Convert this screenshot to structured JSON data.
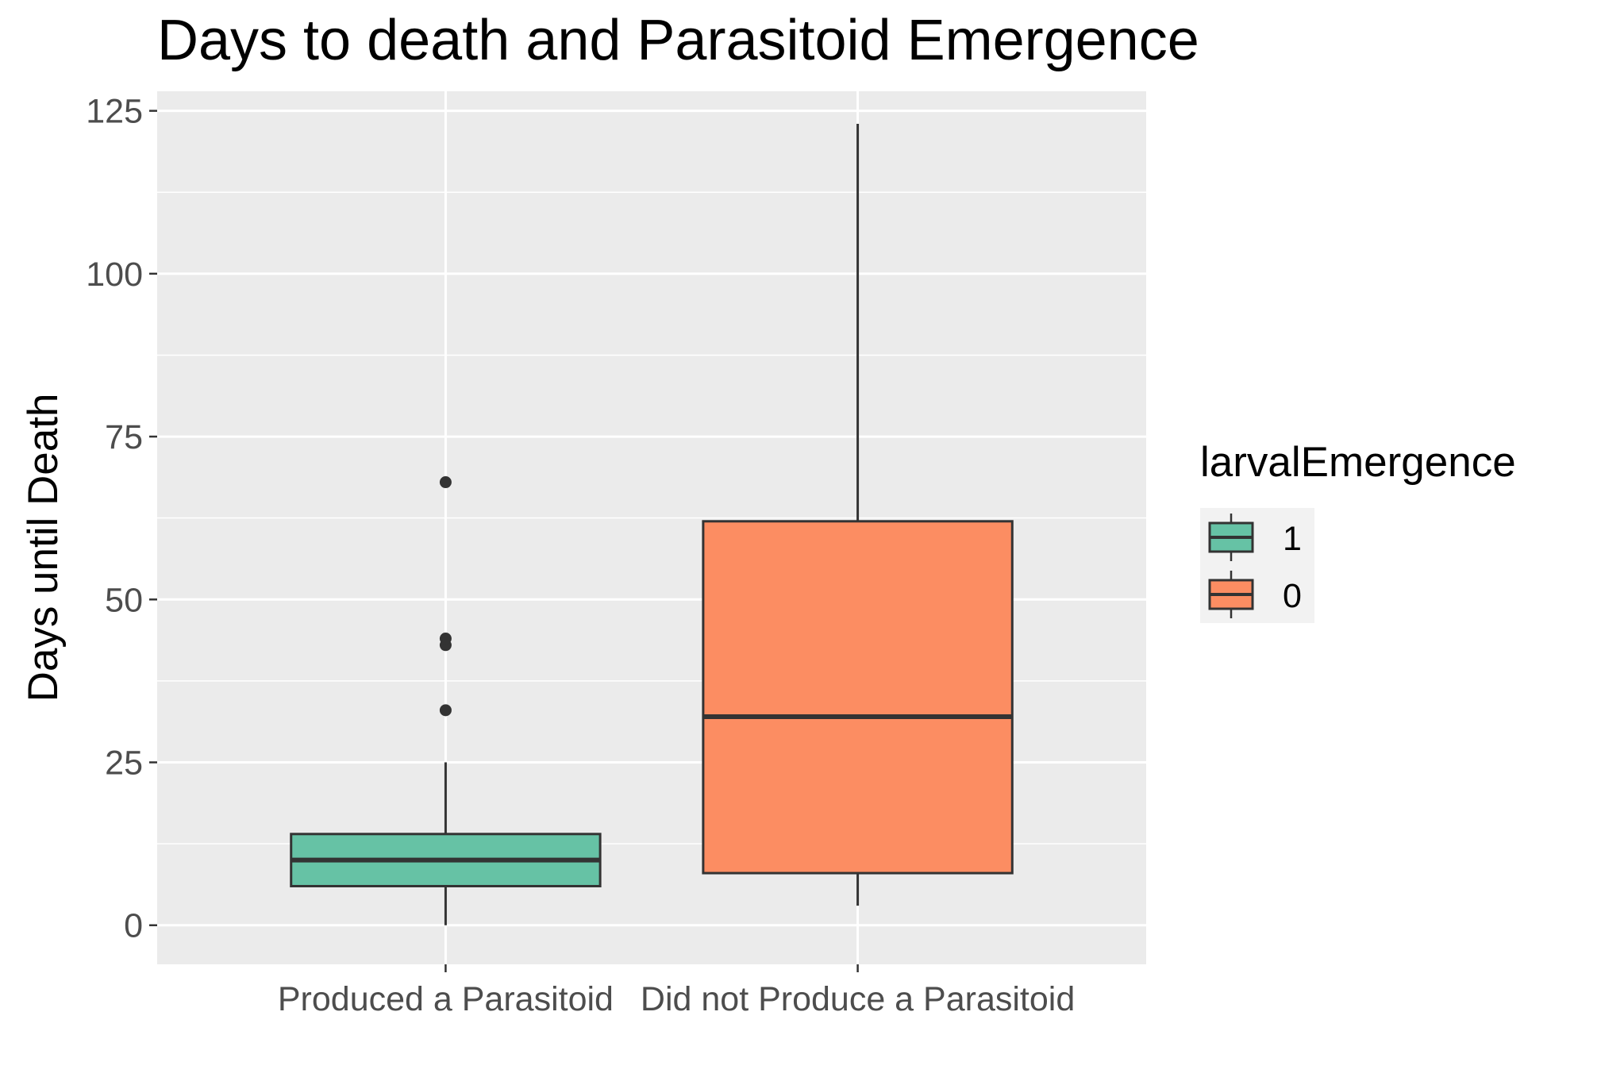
{
  "chart_data": {
    "type": "box",
    "title": "Days to death and Parasitoid Emergence",
    "xlabel": "",
    "ylabel": "Days until Death",
    "ylim": [
      -6,
      128
    ],
    "yticks": [
      0,
      25,
      50,
      75,
      100,
      125
    ],
    "grid": true,
    "legend": {
      "title": "larvalEmergence",
      "position": "right",
      "entries": [
        {
          "label": "1",
          "color": "#66c2a5"
        },
        {
          "label": "0",
          "color": "#fc8d62"
        }
      ]
    },
    "categories": [
      "Produced a Parasitoid",
      "Did not Produce a Parasitoid"
    ],
    "boxes": [
      {
        "category": "Produced a Parasitoid",
        "group": "1",
        "color": "#66c2a5",
        "whisker_low": 0,
        "q1": 6,
        "median": 10,
        "q3": 14,
        "whisker_high": 25,
        "outliers": [
          33,
          43,
          44,
          68
        ]
      },
      {
        "category": "Did not Produce a Parasitoid",
        "group": "0",
        "color": "#fc8d62",
        "whisker_low": 3,
        "q1": 8,
        "median": 32,
        "q3": 62,
        "whisker_high": 123,
        "outliers": []
      }
    ]
  },
  "colors": {
    "panel_background": "#ebebeb",
    "grid": "#ffffff",
    "box_outline": "#333333",
    "tick_text": "#4d4d4d"
  }
}
